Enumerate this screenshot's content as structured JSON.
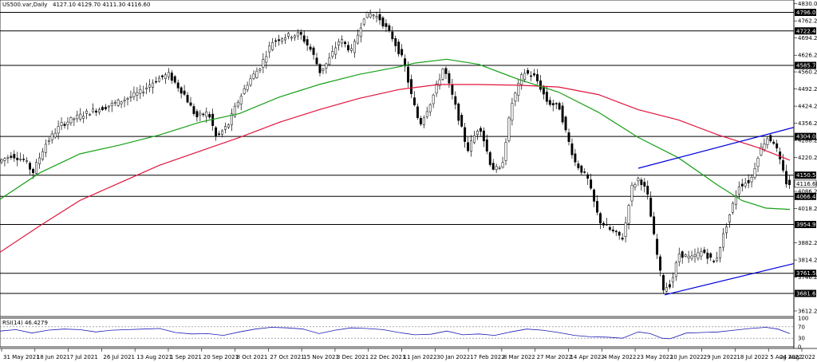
{
  "header": {
    "symbol": "US500.var,Daily",
    "ohlc": "4127.10 4129.70 4111.30 4116.60"
  },
  "rsi": {
    "label": "RSI(14) 46.4279",
    "ticks": [
      "100",
      "70",
      "30",
      "0"
    ],
    "levels": [
      70,
      30
    ]
  },
  "chart_data": {
    "type": "line",
    "ylim": [
      3590,
      4845
    ],
    "y_ticks": [
      {
        "v": 4830.0,
        "label": "4830.00"
      },
      {
        "v": 4762.2,
        "label": "4762.20"
      },
      {
        "v": 4694.2,
        "label": "4694.20"
      },
      {
        "v": 4626.2,
        "label": "4626.20"
      },
      {
        "v": 4560.2,
        "label": "4560.20"
      },
      {
        "v": 4492.2,
        "label": "4492.20"
      },
      {
        "v": 4424.2,
        "label": "4424.20"
      },
      {
        "v": 4356.2,
        "label": "4356.20"
      },
      {
        "v": 4288.2,
        "label": "4288.20"
      },
      {
        "v": 4220.2,
        "label": "4220.20"
      },
      {
        "v": 4086.2,
        "label": "4086.20"
      },
      {
        "v": 4018.2,
        "label": "4018.20"
      },
      {
        "v": 3882.2,
        "label": "3882.20"
      },
      {
        "v": 3814.2,
        "label": "3814.20"
      },
      {
        "v": 3746.2,
        "label": "3746.20"
      },
      {
        "v": 3612.2,
        "label": "3612.20"
      }
    ],
    "horizontal_levels": [
      {
        "v": 4796.0,
        "label": "4796.00"
      },
      {
        "v": 4722.41,
        "label": "4722.41"
      },
      {
        "v": 4585.74,
        "label": "4585.74"
      },
      {
        "v": 4304.0,
        "label": "4304.00"
      },
      {
        "v": 4150.51,
        "label": "4150.51"
      },
      {
        "v": 4066.46,
        "label": "4066.46"
      },
      {
        "v": 3954.97,
        "label": "3954.97"
      },
      {
        "v": 3761.53,
        "label": "3761.53"
      },
      {
        "v": 3681.63,
        "label": "3681.63"
      }
    ],
    "current_price": {
      "v": 4116.6,
      "label": "4116.60"
    },
    "x_labels": [
      "31 May 2021",
      "18 Jun 2021",
      "7 Jul 2021",
      "26 Jul 2021",
      "13 Aug 2021",
      "1 Sep 2021",
      "20 Sep 2021",
      "8 Oct 2021",
      "27 Oct 2021",
      "15 Nov 2021",
      "3 Dec 2021",
      "22 Dec 2021",
      "11 Jan 2022",
      "30 Jan 2022",
      "17 Feb 2022",
      "8 Mar 2022",
      "27 Mar 2022",
      "14 Apr 2022",
      "4 May 2022",
      "23 May 2022",
      "10 Jun 2022",
      "29 Jun 2022",
      "18 Jul 2022",
      "5 Aug 2022",
      "24 Aug 2022"
    ],
    "price_path": [
      [
        0,
        4200
      ],
      [
        18,
        4230
      ],
      [
        35,
        4210
      ],
      [
        45,
        4160
      ],
      [
        60,
        4270
      ],
      [
        80,
        4350
      ],
      [
        100,
        4380
      ],
      [
        115,
        4400
      ],
      [
        135,
        4420
      ],
      [
        160,
        4450
      ],
      [
        180,
        4480
      ],
      [
        200,
        4530
      ],
      [
        215,
        4550
      ],
      [
        235,
        4470
      ],
      [
        250,
        4380
      ],
      [
        265,
        4400
      ],
      [
        275,
        4300
      ],
      [
        290,
        4350
      ],
      [
        300,
        4430
      ],
      [
        315,
        4520
      ],
      [
        330,
        4580
      ],
      [
        345,
        4680
      ],
      [
        360,
        4700
      ],
      [
        380,
        4710
      ],
      [
        395,
        4640
      ],
      [
        405,
        4560
      ],
      [
        415,
        4600
      ],
      [
        430,
        4690
      ],
      [
        445,
        4640
      ],
      [
        460,
        4780
      ],
      [
        470,
        4790
      ],
      [
        480,
        4770
      ],
      [
        495,
        4700
      ],
      [
        510,
        4600
      ],
      [
        520,
        4460
      ],
      [
        530,
        4350
      ],
      [
        545,
        4450
      ],
      [
        560,
        4580
      ],
      [
        575,
        4420
      ],
      [
        590,
        4250
      ],
      [
        605,
        4350
      ],
      [
        620,
        4180
      ],
      [
        632,
        4170
      ],
      [
        645,
        4430
      ],
      [
        660,
        4560
      ],
      [
        675,
        4540
      ],
      [
        690,
        4440
      ],
      [
        705,
        4420
      ],
      [
        715,
        4300
      ],
      [
        725,
        4200
      ],
      [
        740,
        4140
      ],
      [
        755,
        3970
      ],
      [
        770,
        3930
      ],
      [
        785,
        3900
      ],
      [
        795,
        4100
      ],
      [
        805,
        4140
      ],
      [
        815,
        4080
      ],
      [
        825,
        3880
      ],
      [
        835,
        3700
      ],
      [
        845,
        3720
      ],
      [
        855,
        3840
      ],
      [
        870,
        3820
      ],
      [
        885,
        3850
      ],
      [
        900,
        3800
      ],
      [
        915,
        3960
      ],
      [
        930,
        4110
      ],
      [
        945,
        4130
      ],
      [
        955,
        4240
      ],
      [
        965,
        4300
      ],
      [
        975,
        4280
      ],
      [
        982,
        4200
      ],
      [
        990,
        4116
      ]
    ],
    "ma_red": [
      [
        0,
        3845
      ],
      [
        50,
        3950
      ],
      [
        100,
        4050
      ],
      [
        150,
        4120
      ],
      [
        200,
        4190
      ],
      [
        250,
        4245
      ],
      [
        300,
        4300
      ],
      [
        350,
        4360
      ],
      [
        400,
        4410
      ],
      [
        450,
        4455
      ],
      [
        500,
        4490
      ],
      [
        550,
        4510
      ],
      [
        600,
        4510
      ],
      [
        650,
        4507
      ],
      [
        700,
        4500
      ],
      [
        750,
        4470
      ],
      [
        800,
        4410
      ],
      [
        850,
        4370
      ],
      [
        900,
        4310
      ],
      [
        950,
        4260
      ],
      [
        990,
        4210
      ]
    ],
    "ma_green": [
      [
        0,
        4055
      ],
      [
        50,
        4160
      ],
      [
        100,
        4235
      ],
      [
        150,
        4270
      ],
      [
        200,
        4310
      ],
      [
        250,
        4360
      ],
      [
        300,
        4395
      ],
      [
        350,
        4460
      ],
      [
        400,
        4510
      ],
      [
        450,
        4550
      ],
      [
        500,
        4580
      ],
      [
        520,
        4595
      ],
      [
        560,
        4610
      ],
      [
        600,
        4590
      ],
      [
        650,
        4530
      ],
      [
        700,
        4480
      ],
      [
        750,
        4400
      ],
      [
        800,
        4300
      ],
      [
        850,
        4220
      ],
      [
        900,
        4110
      ],
      [
        930,
        4050
      ],
      [
        960,
        4020
      ],
      [
        990,
        4015
      ]
    ],
    "trendline_upper": [
      [
        800,
        4178
      ],
      [
        995,
        4340
      ]
    ],
    "trendline_lower": [
      [
        833,
        3676
      ],
      [
        995,
        3800
      ]
    ],
    "rsi_path": [
      [
        0,
        55
      ],
      [
        20,
        60
      ],
      [
        40,
        48
      ],
      [
        60,
        58
      ],
      [
        80,
        62
      ],
      [
        100,
        60
      ],
      [
        120,
        52
      ],
      [
        140,
        58
      ],
      [
        160,
        60
      ],
      [
        180,
        62
      ],
      [
        200,
        64
      ],
      [
        220,
        50
      ],
      [
        240,
        45
      ],
      [
        260,
        46
      ],
      [
        280,
        40
      ],
      [
        300,
        52
      ],
      [
        320,
        62
      ],
      [
        340,
        68
      ],
      [
        360,
        66
      ],
      [
        380,
        62
      ],
      [
        400,
        46
      ],
      [
        420,
        58
      ],
      [
        440,
        66
      ],
      [
        460,
        64
      ],
      [
        480,
        60
      ],
      [
        500,
        50
      ],
      [
        520,
        42
      ],
      [
        540,
        44
      ],
      [
        560,
        55
      ],
      [
        580,
        42
      ],
      [
        600,
        45
      ],
      [
        620,
        40
      ],
      [
        640,
        52
      ],
      [
        660,
        62
      ],
      [
        680,
        58
      ],
      [
        700,
        50
      ],
      [
        720,
        40
      ],
      [
        740,
        35
      ],
      [
        760,
        34
      ],
      [
        780,
        30
      ],
      [
        800,
        52
      ],
      [
        815,
        46
      ],
      [
        830,
        30
      ],
      [
        840,
        28
      ],
      [
        860,
        48
      ],
      [
        880,
        50
      ],
      [
        900,
        52
      ],
      [
        920,
        58
      ],
      [
        940,
        64
      ],
      [
        960,
        68
      ],
      [
        975,
        62
      ],
      [
        990,
        46
      ]
    ]
  }
}
